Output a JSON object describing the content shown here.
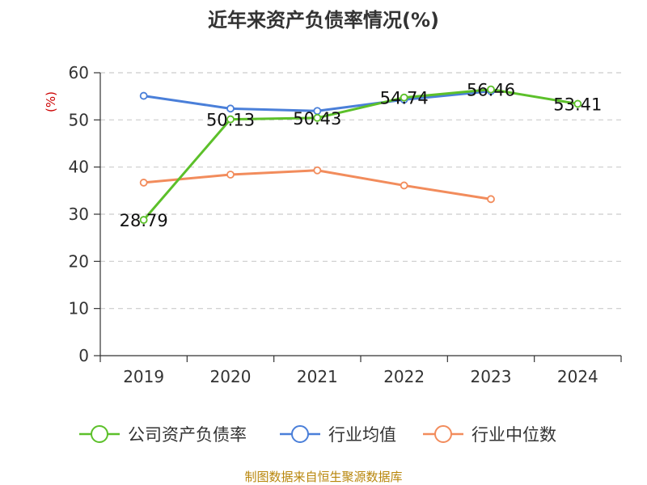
{
  "chart_data": {
    "type": "line",
    "title": "近年来资产负债率情况(%)",
    "ylabel": "(%)",
    "categories": [
      "2019",
      "2020",
      "2021",
      "2022",
      "2023",
      "2024"
    ],
    "ylim": [
      0,
      60
    ],
    "yticks": [
      0,
      10,
      20,
      30,
      40,
      50,
      60
    ],
    "grid": true,
    "legend_position": "bottom",
    "series": [
      {
        "name": "公司资产负债率",
        "color": "#5cc02a",
        "values": [
          28.79,
          50.13,
          50.43,
          54.74,
          56.46,
          53.41
        ],
        "labels": [
          "28.79",
          "50.13",
          "50.43",
          "54.74",
          "56.46",
          "53.41"
        ]
      },
      {
        "name": "行业均值",
        "color": "#4a7fd9",
        "values": [
          55.1,
          52.4,
          51.9,
          54.3,
          56.1,
          null
        ]
      },
      {
        "name": "行业中位数",
        "color": "#f28c5c",
        "values": [
          36.7,
          38.4,
          39.3,
          36.1,
          33.2,
          null
        ]
      }
    ],
    "source": "制图数据来自恒生聚源数据库"
  }
}
